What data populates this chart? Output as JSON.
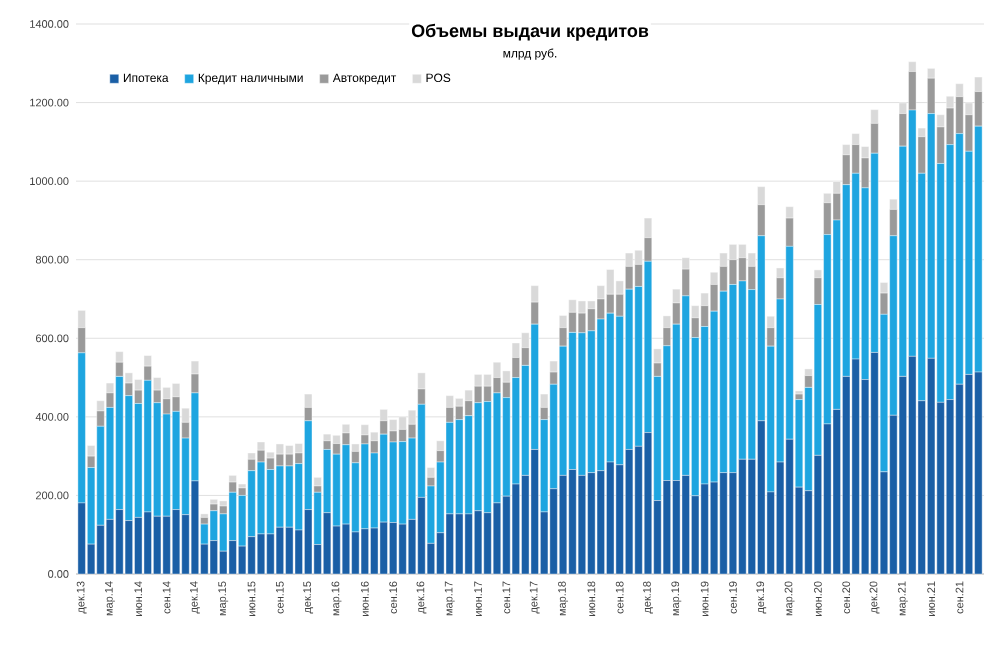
{
  "chart_data": {
    "type": "bar",
    "stacked": true,
    "title": "Объемы выдачи кредитов",
    "subtitle": "млрд руб.",
    "categories": [
      "дек.13",
      null,
      null,
      "мар.14",
      null,
      null,
      "июн.14",
      null,
      null,
      "сен.14",
      null,
      null,
      "дек.14",
      null,
      null,
      "мар.15",
      null,
      null,
      "июн.15",
      null,
      null,
      "сен.15",
      null,
      null,
      "дек.15",
      null,
      null,
      "мар.16",
      null,
      null,
      "июн.16",
      null,
      null,
      "сен.16",
      null,
      null,
      "дек.16",
      null,
      null,
      "мар.17",
      null,
      null,
      "июн.17",
      null,
      null,
      "сен.17",
      null,
      null,
      "дек.17",
      null,
      null,
      "мар.18",
      null,
      null,
      "июн.18",
      null,
      null,
      "сен.18",
      null,
      null,
      "дек.18",
      null,
      null,
      "мар.19",
      null,
      null,
      "июн.19",
      null,
      null,
      "сен.19",
      null,
      null,
      "дек.19",
      null,
      null,
      "мар.20",
      null,
      null,
      "июн.20",
      null,
      null,
      "сен.20",
      null,
      null,
      "дек.20",
      null,
      null,
      "мар.21",
      null,
      null,
      "июн.21",
      null,
      null,
      "сен.21",
      null,
      null
    ],
    "series": [
      {
        "name": "Ипотека",
        "color": "#1a5fa6",
        "values": [
          181,
          76,
          124,
          139,
          164,
          136,
          144,
          158,
          147,
          147,
          164,
          151,
          237,
          76,
          85,
          58,
          85,
          71,
          95,
          102,
          102,
          119,
          119,
          112,
          164,
          75,
          156,
          122,
          127,
          107,
          115,
          117,
          132,
          131,
          127,
          139,
          195,
          78,
          105,
          153,
          153,
          153,
          161,
          156,
          181,
          198,
          229,
          251,
          317,
          158,
          217,
          251,
          266,
          251,
          258,
          263,
          285,
          278,
          317,
          325,
          360,
          187,
          238,
          238,
          251,
          199,
          229,
          234,
          258,
          258,
          292,
          292,
          390,
          209,
          285,
          343,
          221,
          212,
          302,
          382,
          419,
          503,
          547,
          495,
          564,
          260,
          404,
          503,
          554,
          441,
          549,
          437,
          444,
          483,
          508,
          514
        ]
      },
      {
        "name": "Кредит наличными",
        "color": "#1ea5e0",
        "values": [
          382,
          195,
          252,
          285,
          339,
          318,
          290,
          335,
          289,
          260,
          250,
          195,
          224,
          51,
          76,
          95,
          123,
          129,
          168,
          183,
          164,
          156,
          156,
          169,
          226,
          133,
          161,
          183,
          202,
          176,
          216,
          191,
          224,
          205,
          210,
          207,
          237,
          146,
          180,
          233,
          240,
          250,
          275,
          283,
          280,
          251,
          271,
          280,
          319,
          235,
          266,
          329,
          349,
          363,
          361,
          386,
          379,
          378,
          408,
          407,
          436,
          316,
          343,
          398,
          457,
          403,
          401,
          435,
          462,
          479,
          454,
          432,
          471,
          371,
          415,
          491,
          223,
          263,
          384,
          482,
          482,
          488,
          473,
          488,
          507,
          401,
          457,
          586,
          627,
          579,
          623,
          608,
          649,
          638,
          568,
          626
        ]
      },
      {
        "name": "Автокредит",
        "color": "#9a9a9a",
        "values": [
          64,
          29,
          39,
          37,
          36,
          32,
          34,
          36,
          32,
          39,
          37,
          40,
          48,
          17,
          17,
          20,
          26,
          19,
          29,
          30,
          29,
          30,
          30,
          27,
          34,
          16,
          22,
          27,
          30,
          29,
          23,
          31,
          34,
          28,
          31,
          35,
          39,
          22,
          29,
          38,
          34,
          38,
          42,
          39,
          39,
          39,
          51,
          45,
          56,
          31,
          31,
          47,
          51,
          50,
          56,
          51,
          48,
          56,
          58,
          56,
          60,
          34,
          46,
          54,
          68,
          50,
          53,
          68,
          63,
          63,
          59,
          59,
          79,
          47,
          54,
          72,
          14,
          30,
          68,
          81,
          68,
          76,
          73,
          76,
          76,
          54,
          67,
          83,
          98,
          93,
          90,
          93,
          93,
          94,
          93,
          88
        ]
      },
      {
        "name": "POS",
        "color": "#d9d9d9",
        "values": [
          44,
          27,
          26,
          25,
          27,
          26,
          27,
          27,
          32,
          29,
          34,
          36,
          33,
          9,
          12,
          13,
          17,
          10,
          16,
          21,
          15,
          26,
          22,
          24,
          34,
          22,
          17,
          21,
          22,
          19,
          26,
          22,
          29,
          29,
          32,
          36,
          41,
          25,
          25,
          30,
          20,
          27,
          30,
          30,
          39,
          29,
          37,
          38,
          42,
          34,
          28,
          31,
          32,
          31,
          20,
          34,
          63,
          34,
          34,
          36,
          50,
          36,
          30,
          35,
          29,
          31,
          32,
          31,
          34,
          39,
          34,
          34,
          46,
          29,
          25,
          29,
          8,
          17,
          20,
          24,
          30,
          26,
          28,
          29,
          35,
          27,
          26,
          27,
          25,
          22,
          25,
          31,
          30,
          33,
          30,
          37
        ]
      }
    ],
    "ylim": [
      0,
      1400
    ],
    "yticks": [
      {
        "value": 0,
        "label": "0.00"
      },
      {
        "value": 200,
        "label": "200.00"
      },
      {
        "value": 400,
        "label": "400.00"
      },
      {
        "value": 600,
        "label": "600.00"
      },
      {
        "value": 800,
        "label": "800.00"
      },
      {
        "value": 1000,
        "label": "1000.00"
      },
      {
        "value": 1200,
        "label": "1200.00"
      },
      {
        "value": 1400,
        "label": "1400.00"
      }
    ],
    "grid": "y",
    "legend": "top left"
  }
}
